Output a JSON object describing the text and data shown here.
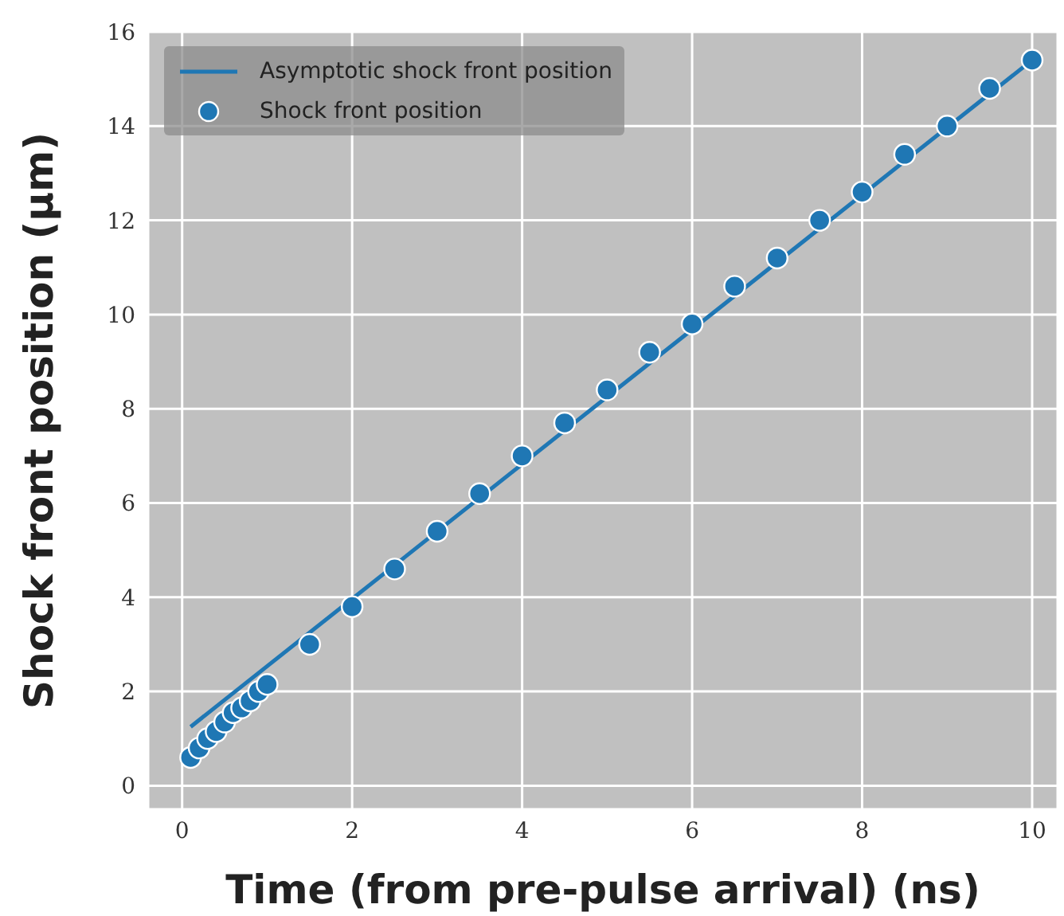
{
  "chart_data": {
    "type": "scatter",
    "xlabel": "Time (from pre-pulse arrival) (ns)",
    "ylabel": "Shock front position (μm)",
    "xlim": [
      -0.4,
      10.3
    ],
    "xticks": [
      0,
      2,
      4,
      6,
      8,
      10
    ],
    "ylim": [
      -0.5,
      16
    ],
    "yticks": [
      0,
      2,
      4,
      6,
      8,
      10,
      12,
      14,
      16
    ],
    "grid": true,
    "legend": "top left",
    "series": [
      {
        "name": "Asymptotic shock front position",
        "type": "line",
        "marker": "none",
        "color": "#1f77b4",
        "x": [
          0.1,
          10
        ],
        "values": [
          1.25,
          15.4
        ]
      },
      {
        "name": "Shock front position",
        "marker": "circle",
        "color": "#1f77b4",
        "x": [
          0.1,
          0.2,
          0.3,
          0.4,
          0.5,
          0.6,
          0.7,
          0.8,
          0.9,
          1.0,
          1.5,
          2,
          2.5,
          3,
          3.5,
          4,
          4.5,
          5,
          5.5,
          6,
          6.5,
          7,
          7.5,
          8,
          8.5,
          9,
          9.5,
          10
        ],
        "values": [
          0.6,
          0.8,
          1.0,
          1.15,
          1.35,
          1.55,
          1.65,
          1.8,
          2.0,
          2.15,
          3.0,
          3.8,
          4.6,
          5.4,
          6.2,
          7.0,
          7.7,
          8.4,
          9.2,
          9.8,
          10.6,
          11.2,
          12.0,
          12.6,
          13.4,
          14.0,
          14.8,
          15.4
        ]
      }
    ]
  }
}
